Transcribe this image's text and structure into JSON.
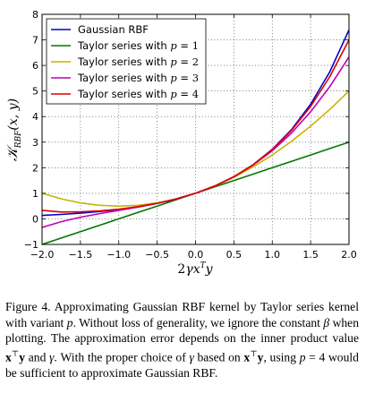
{
  "chart_data": {
    "type": "line",
    "xlabel": "2γxᵀy",
    "ylabel": "𝒦RBF(x, y)",
    "xlim": [
      -2.0,
      2.0
    ],
    "ylim": [
      -1,
      8
    ],
    "x_ticks": [
      "−2.0",
      "−1.5",
      "−1.0",
      "−0.5",
      "0.0",
      "0.5",
      "1.0",
      "1.5",
      "2.0"
    ],
    "y_ticks": [
      "−1",
      "0",
      "1",
      "2",
      "3",
      "4",
      "5",
      "6",
      "7",
      "8"
    ],
    "grid": true,
    "legend_position": "top-left",
    "x": [
      -2.0,
      -1.75,
      -1.5,
      -1.25,
      -1.0,
      -0.75,
      -0.5,
      -0.25,
      0.0,
      0.25,
      0.5,
      0.75,
      1.0,
      1.25,
      1.5,
      1.75,
      2.0
    ],
    "series": [
      {
        "name": "Gaussian RBF",
        "color": "#0000cc",
        "values": [
          0.135,
          0.174,
          0.223,
          0.287,
          0.368,
          0.472,
          0.607,
          0.779,
          1.0,
          1.284,
          1.649,
          2.117,
          2.718,
          3.49,
          4.482,
          5.755,
          7.389
        ]
      },
      {
        "name": "Taylor series with p = 1",
        "color": "#007700",
        "values": [
          -1.0,
          -0.75,
          -0.5,
          -0.25,
          0.0,
          0.25,
          0.5,
          0.75,
          1.0,
          1.25,
          1.5,
          1.75,
          2.0,
          2.25,
          2.5,
          2.75,
          3.0
        ]
      },
      {
        "name": "Taylor series with p = 2",
        "color": "#c8b400",
        "values": [
          1.0,
          0.781,
          0.625,
          0.531,
          0.5,
          0.531,
          0.625,
          0.781,
          1.0,
          1.281,
          1.625,
          2.031,
          2.5,
          3.031,
          3.625,
          4.281,
          5.0
        ]
      },
      {
        "name": "Taylor series with p = 3",
        "color": "#bb00bb",
        "values": [
          -0.333,
          -0.112,
          0.063,
          0.206,
          0.333,
          0.461,
          0.604,
          0.779,
          1.0,
          1.284,
          1.646,
          2.102,
          2.667,
          3.357,
          4.188,
          5.174,
          6.333
        ]
      },
      {
        "name": "Taylor series with p = 4",
        "color": "#dd0000",
        "values": [
          0.333,
          0.266,
          0.273,
          0.313,
          0.375,
          0.477,
          0.607,
          0.779,
          1.0,
          1.284,
          1.648,
          2.116,
          2.708,
          3.459,
          4.398,
          5.565,
          7.0
        ]
      }
    ]
  },
  "legend": [
    {
      "prefix": "Gaussian RBF",
      "var": "",
      "eq": "",
      "num": ""
    },
    {
      "prefix": "Taylor series with ",
      "var": "p",
      "eq": " = ",
      "num": "1"
    },
    {
      "prefix": "Taylor series with ",
      "var": "p",
      "eq": " = ",
      "num": "2"
    },
    {
      "prefix": "Taylor series with ",
      "var": "p",
      "eq": " = ",
      "num": "3"
    },
    {
      "prefix": "Taylor series with ",
      "var": "p",
      "eq": " = ",
      "num": "4"
    }
  ],
  "axis_text": {
    "x_pre": "2",
    "x_gamma": "γ",
    "x_x": "x",
    "x_T": "T",
    "x_y": "y",
    "y_K": "𝒦",
    "y_sub": "RBF",
    "y_args": "(x, y)"
  },
  "caption": {
    "p1": "Figure 4.  Approximating Gaussian RBF kernel by Taylor series kernel with variant ",
    "var_p1": "p",
    "p2": ".  Without loss of generality, we ignore the constant ",
    "var_beta": "β",
    "p3": " when plotting.  The approximation error depends on the inner product value ",
    "x1": "x",
    "T1": "⊤",
    "y1": "y",
    "p4": " and ",
    "var_gamma": "γ",
    "p5": ".  With the proper choice of ",
    "var_gamma2": "γ",
    "p6": " based on ",
    "x2": "x",
    "T2": "⊤",
    "y2": "y",
    "p7": ", using ",
    "var_p2": "p",
    "p8": " = 4 would be sufficient to approximate Gaussian RBF."
  }
}
